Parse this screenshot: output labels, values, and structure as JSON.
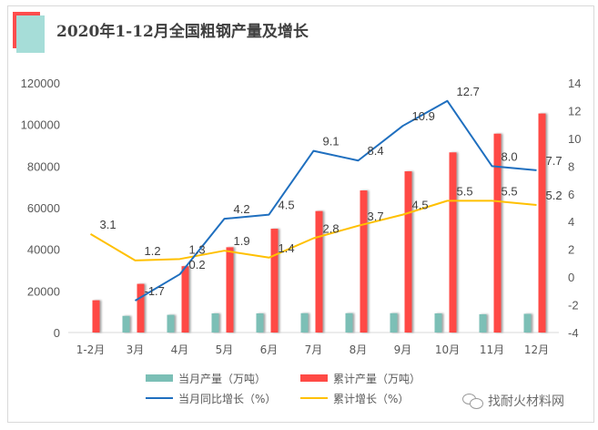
{
  "title": "2020年1-12月全国粗钢产量及增长",
  "watermark": "找耐火材料网",
  "colors": {
    "monthly_output": "#7bbfb6",
    "cumulative_output": "#ff4a45",
    "monthly_yoy": "#1f6fbf",
    "cumulative_growth": "#ffc000",
    "deco_red": "#ff4d4d",
    "deco_teal": "#a6ddd8"
  },
  "chart_data": {
    "type": "bar",
    "title": "2020年1-12月全国粗钢产量及增长",
    "categories": [
      "1-2月",
      "3月",
      "4月",
      "5月",
      "6月",
      "7月",
      "8月",
      "9月",
      "10月",
      "11月",
      "12月"
    ],
    "left_axis": {
      "min": 0,
      "max": 120000,
      "ticks": [
        "0",
        "20000",
        "40000",
        "60000",
        "80000",
        "100000",
        "120000"
      ]
    },
    "right_axis": {
      "min": -4,
      "max": 14,
      "ticks": [
        "-4",
        "-2",
        "0",
        "2",
        "4",
        "6",
        "8",
        "10",
        "12",
        "14"
      ]
    },
    "grid": false,
    "legend_position": "bottom",
    "series": [
      {
        "name": "当月产量（万吨）",
        "type": "bar",
        "axis": "left",
        "values": [
          null,
          8000,
          8500,
          9200,
          9200,
          9300,
          9300,
          9300,
          9200,
          8800,
          9000
        ]
      },
      {
        "name": "累计产量（万吨）",
        "type": "bar",
        "axis": "left",
        "values": [
          15500,
          23400,
          31900,
          41000,
          49900,
          58400,
          68300,
          77500,
          86600,
          95600,
          105300
        ]
      },
      {
        "name": "当月同比增长（%）",
        "type": "line",
        "axis": "right",
        "values": [
          null,
          -1.7,
          0.2,
          4.2,
          4.5,
          9.1,
          8.4,
          10.9,
          12.7,
          8.0,
          7.7
        ],
        "labels": [
          "",
          "-1.7",
          "0.2",
          "4.2",
          "4.5",
          "9.1",
          "8.4",
          "10.9",
          "12.7",
          "8.0",
          "7.7"
        ]
      },
      {
        "name": "累计增长（%）",
        "type": "line",
        "axis": "right",
        "values": [
          3.1,
          1.2,
          1.3,
          1.9,
          1.4,
          2.8,
          3.7,
          4.5,
          5.5,
          5.5,
          5.2
        ],
        "labels": [
          "3.1",
          "1.2",
          "1.3",
          "1.9",
          "1.4",
          "2.8",
          "3.7",
          "4.5",
          "5.5",
          "5.5",
          "5.2"
        ]
      }
    ]
  },
  "legend": [
    {
      "label": "当月产量（万吨）",
      "kind": "bar",
      "color": "#7bbfb6"
    },
    {
      "label": "累计产量（万吨）",
      "kind": "bar",
      "color": "#ff4a45"
    },
    {
      "label": "当月同比增长（%）",
      "kind": "line",
      "color": "#1f6fbf"
    },
    {
      "label": "累计增长（%）",
      "kind": "line",
      "color": "#ffc000"
    }
  ]
}
